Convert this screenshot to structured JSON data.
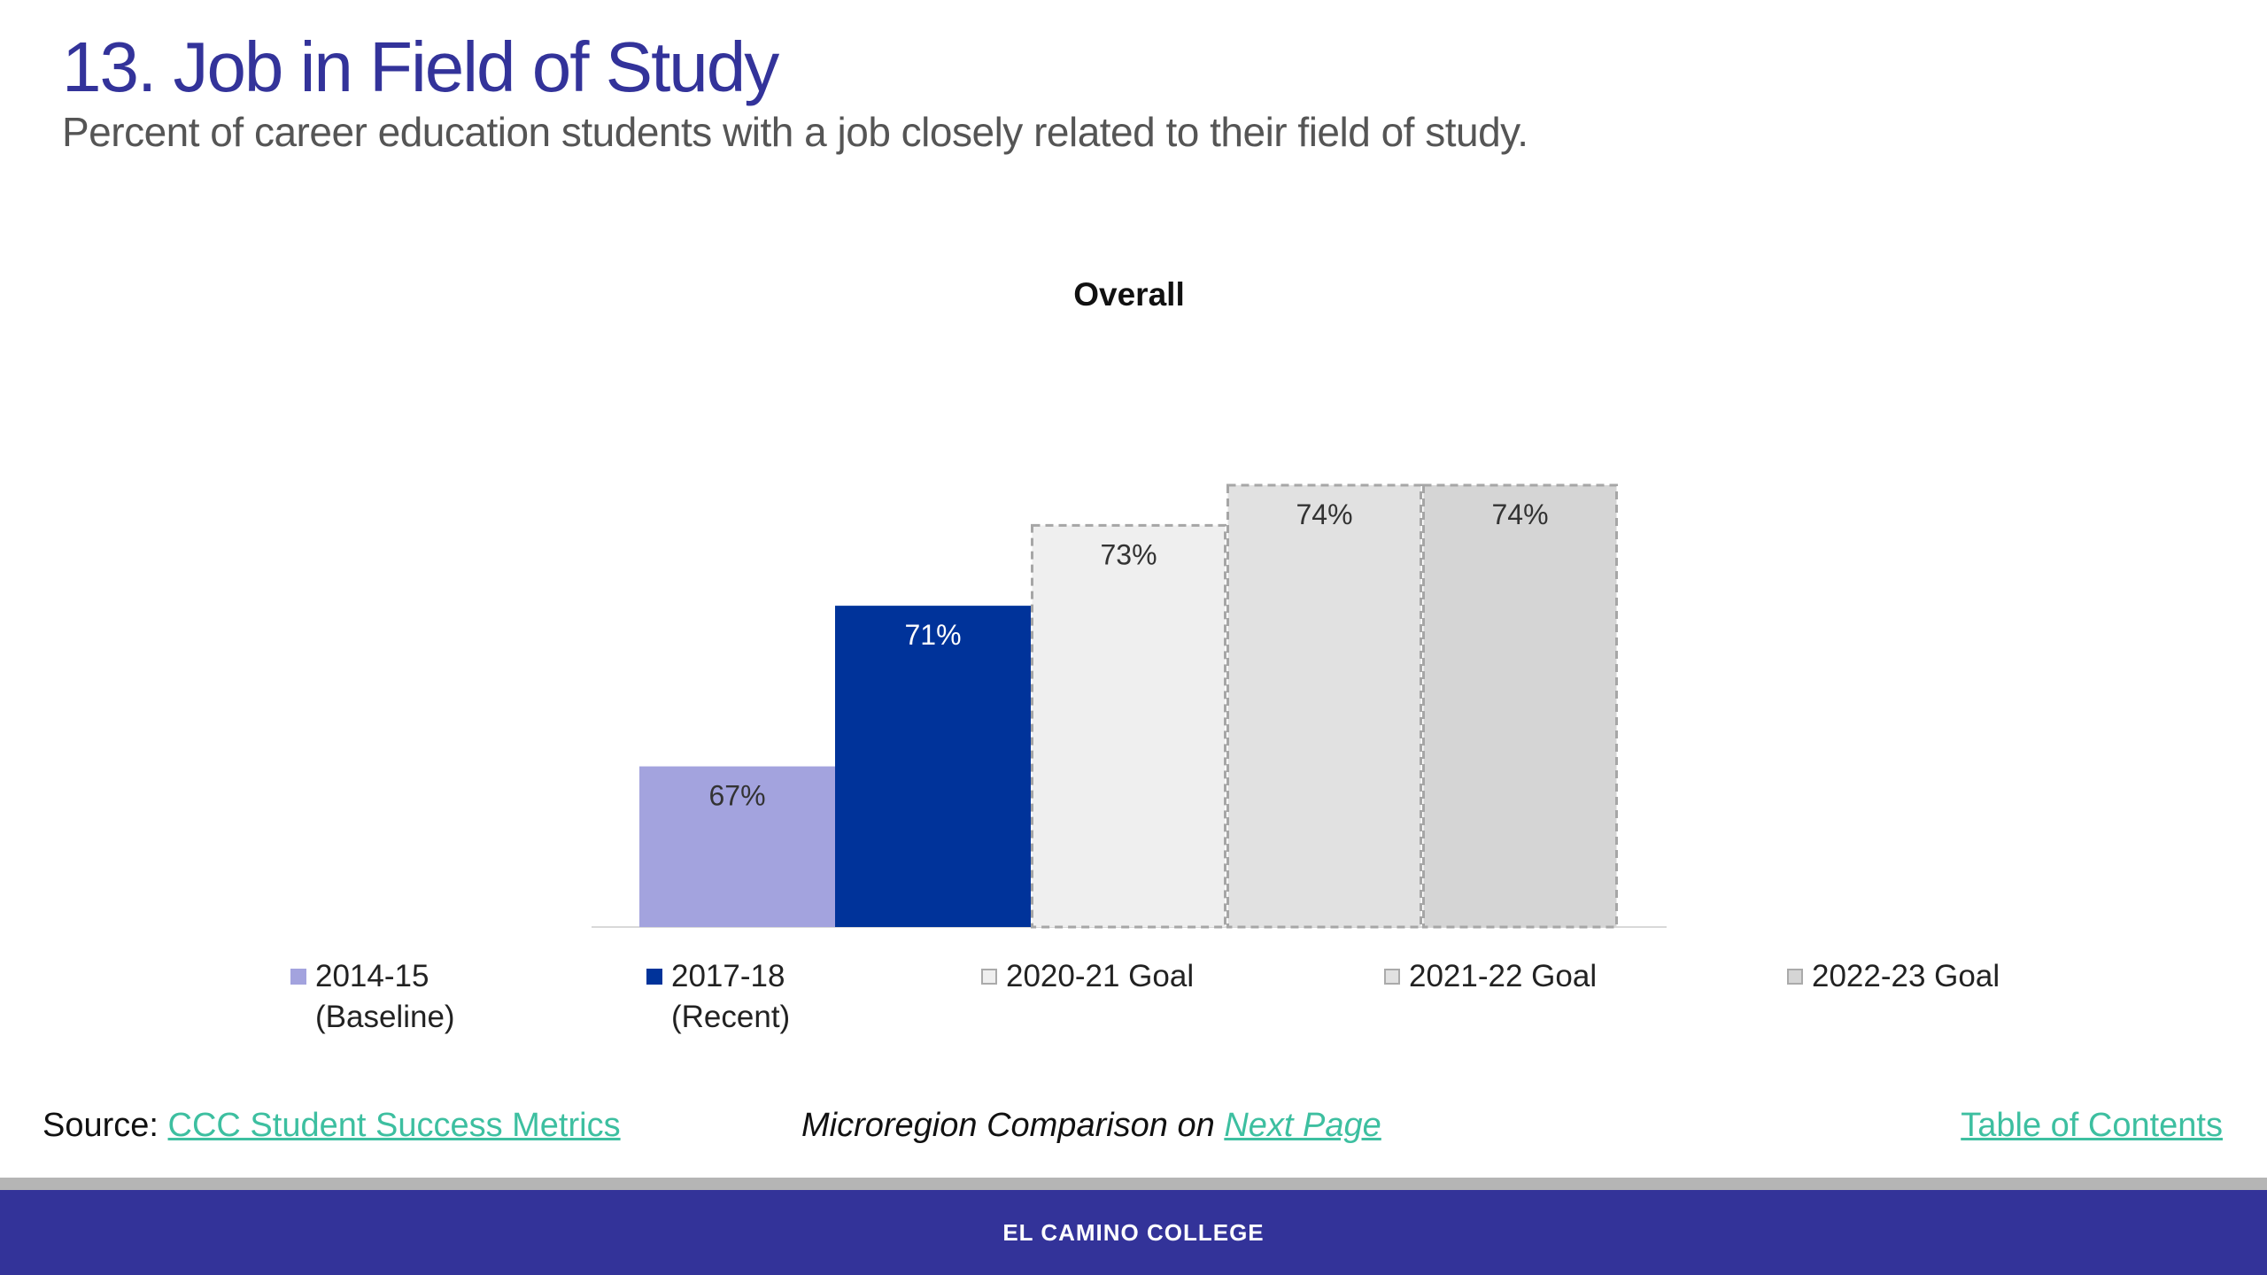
{
  "header": {
    "title": "13. Job in Field of Study",
    "subtitle": "Percent of career education students with a job closely related to their field of study."
  },
  "chart_data": {
    "type": "bar",
    "title": "Overall",
    "categories": [
      "2014-15 (Baseline)",
      "2017-18 (Recent)",
      "2020-21 Goal",
      "2021-22 Goal",
      "2022-23 Goal"
    ],
    "values": [
      67,
      71,
      73,
      74,
      74
    ],
    "value_labels": [
      "67%",
      "71%",
      "73%",
      "74%",
      "74%"
    ],
    "unit": "%",
    "colors": [
      "#a3a3de",
      "#00339a",
      "#efefef",
      "#e1e1e1",
      "#d5d5d5"
    ],
    "goal_bars_dashed": [
      false,
      false,
      true,
      true,
      true
    ],
    "ylim": [
      63,
      75.5
    ],
    "grid": false,
    "legend_position": "bottom",
    "legend": [
      {
        "line1": "2014-15",
        "line2": "(Baseline)"
      },
      {
        "line1": "2017-18",
        "line2": "(Recent)"
      },
      {
        "line1": "2020-21 Goal",
        "line2": ""
      },
      {
        "line1": "2021-22 Goal",
        "line2": ""
      },
      {
        "line1": "2022-23 Goal",
        "line2": ""
      }
    ]
  },
  "footer": {
    "source_label": "Source:",
    "source_link": "CCC Student Success Metrics",
    "comparison_text": "Microregion Comparison on",
    "next_page_link": "Next Page",
    "toc_link": "Table of Contents",
    "college_name": "EL CAMINO COLLEGE"
  }
}
